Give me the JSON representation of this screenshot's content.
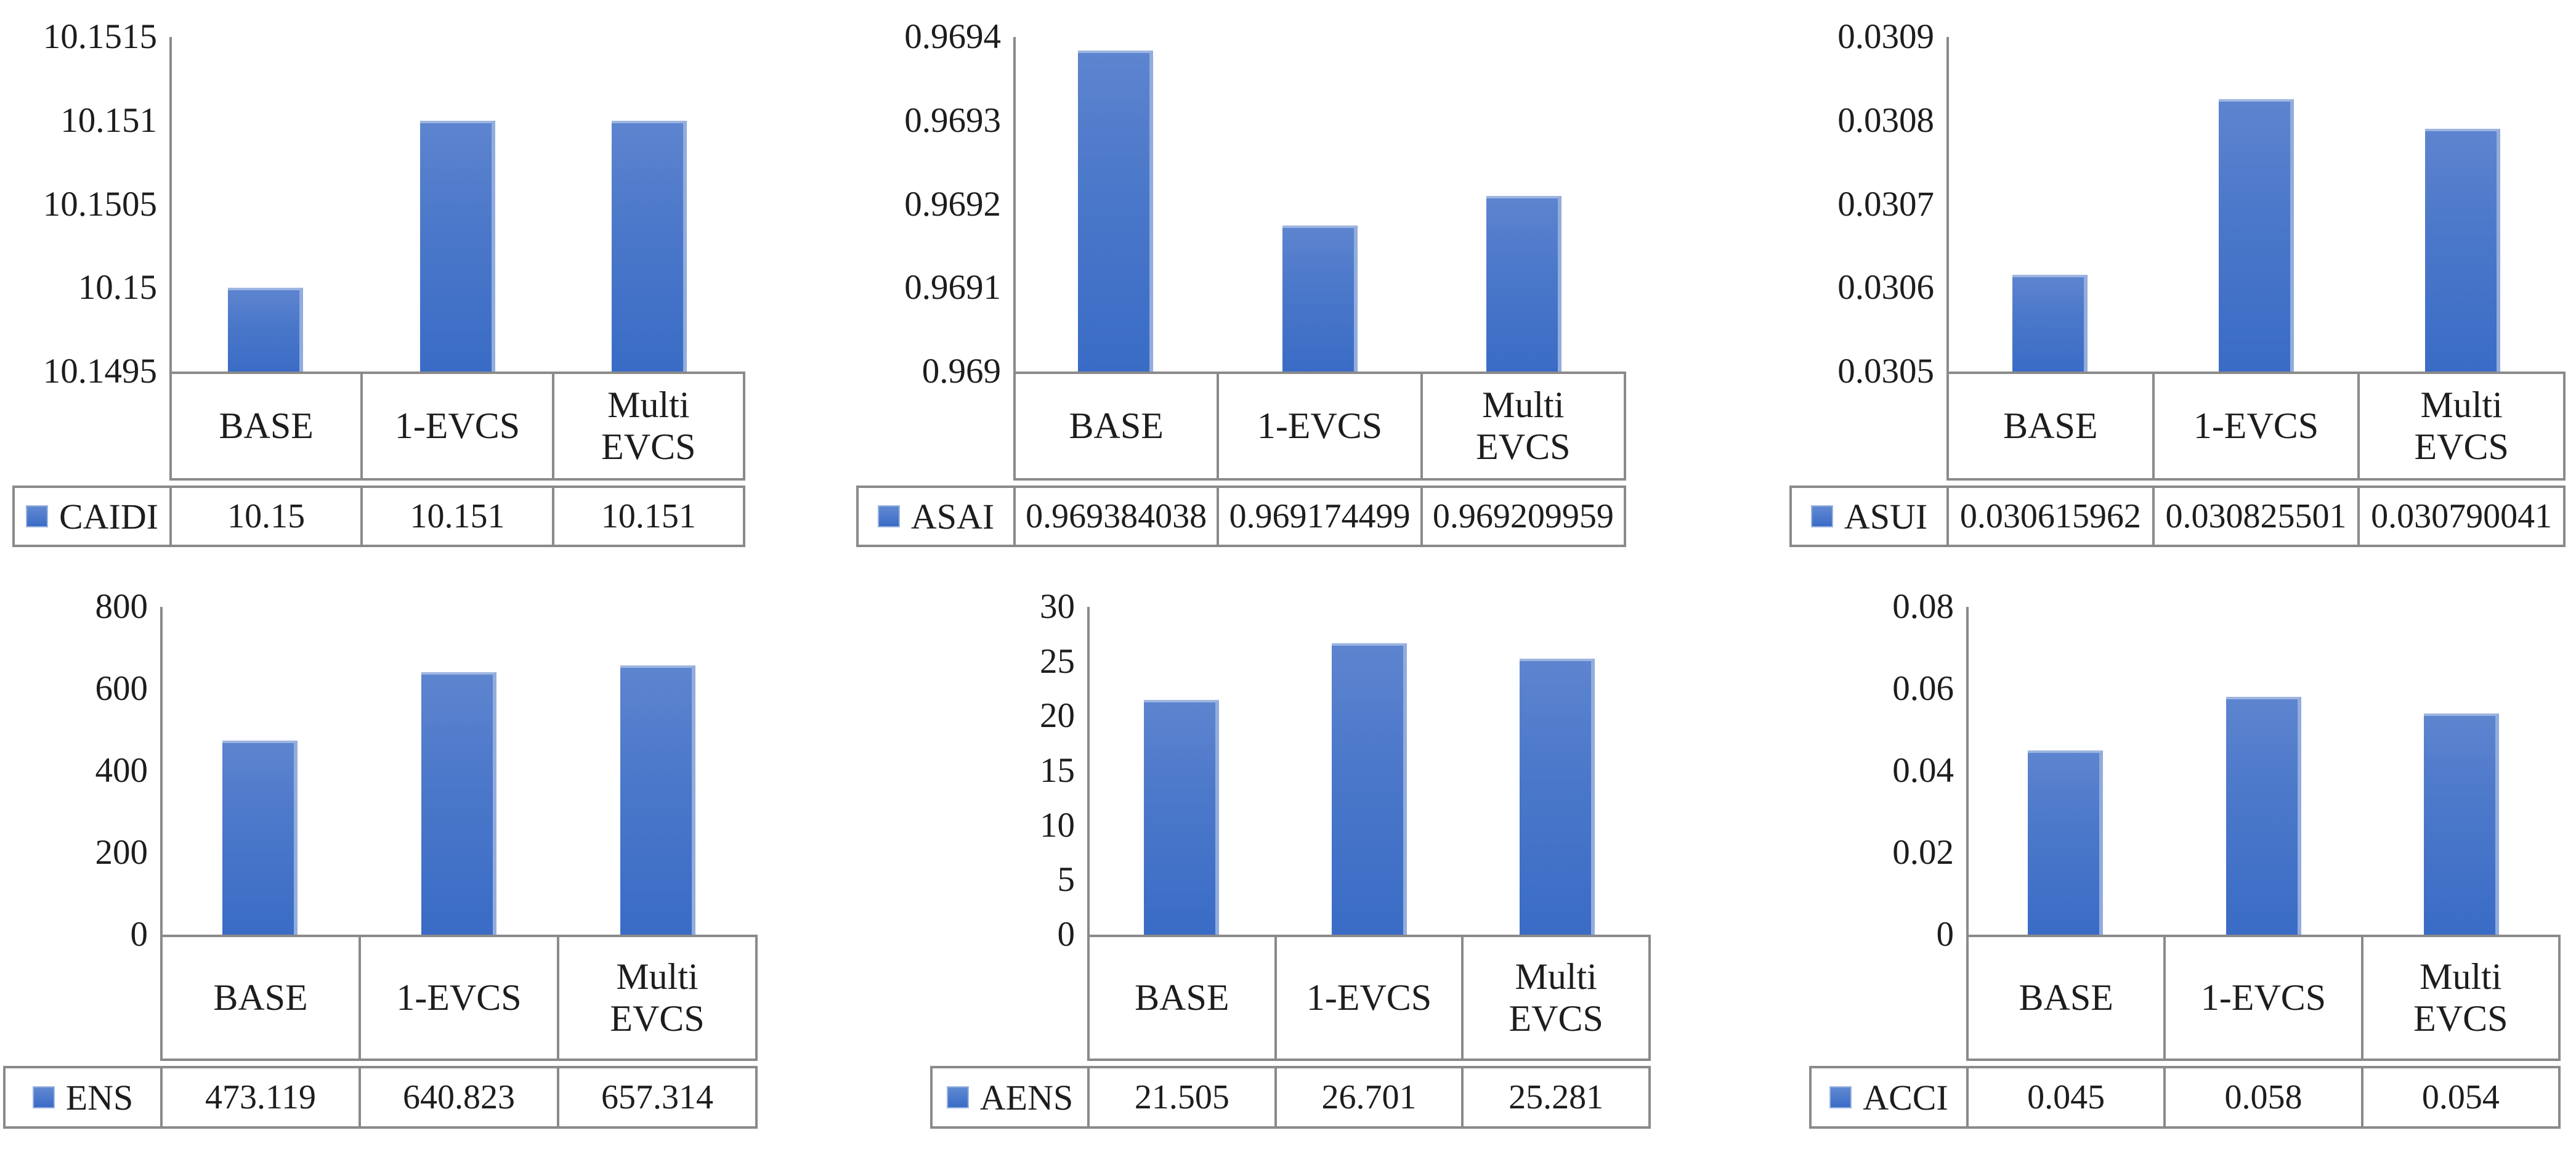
{
  "figure": {
    "background": "#ffffff",
    "text_color": "#1d1d1d",
    "border_color": "#8a8a8a",
    "bar_color_top": "#5d84cf",
    "bar_color_bottom": "#3a6cc6",
    "bar_base_color": "#4472c4"
  },
  "chart_data": [
    {
      "type": "bar",
      "name": "CAIDI",
      "categories": [
        "BASE",
        "1-EVCS",
        "Multi EVCS"
      ],
      "values": [
        10.15,
        10.151,
        10.151
      ],
      "display_values": [
        "10.15",
        "10.151",
        "10.151"
      ],
      "ylim": [
        10.1495,
        10.1515
      ],
      "yticks": [
        "10.1515",
        "10.151",
        "10.1505",
        "10.15",
        "10.1495"
      ],
      "grid": false,
      "legend_position": "table-left"
    },
    {
      "type": "bar",
      "name": "ASAI",
      "categories": [
        "BASE",
        "1-EVCS",
        "Multi EVCS"
      ],
      "values": [
        0.969384038,
        0.969174499,
        0.969209959
      ],
      "display_values": [
        "0.969384038",
        "0.969174499",
        "0.969209959"
      ],
      "ylim": [
        0.969,
        0.9694
      ],
      "yticks": [
        "0.9694",
        "0.9693",
        "0.9692",
        "0.9691",
        "0.969"
      ],
      "grid": false,
      "legend_position": "table-left"
    },
    {
      "type": "bar",
      "name": "ASUI",
      "categories": [
        "BASE",
        "1-EVCS",
        "Multi EVCS"
      ],
      "values": [
        0.030615962,
        0.030825501,
        0.030790041
      ],
      "display_values": [
        "0.030615962",
        "0.030825501",
        "0.030790041"
      ],
      "ylim": [
        0.0305,
        0.0309
      ],
      "yticks": [
        "0.0309",
        "0.0308",
        "0.0307",
        "0.0306",
        "0.0305"
      ],
      "grid": false,
      "legend_position": "table-left"
    },
    {
      "type": "bar",
      "name": "ENS",
      "categories": [
        "BASE",
        "1-EVCS",
        "Multi EVCS"
      ],
      "values": [
        473.119,
        640.823,
        657.314
      ],
      "display_values": [
        "473.119",
        "640.823",
        "657.314"
      ],
      "ylim": [
        0,
        800
      ],
      "yticks": [
        "800",
        "600",
        "400",
        "200",
        "0"
      ],
      "grid": false,
      "legend_position": "table-left"
    },
    {
      "type": "bar",
      "name": "AENS",
      "categories": [
        "BASE",
        "1-EVCS",
        "Multi EVCS"
      ],
      "values": [
        21.505,
        26.701,
        25.281
      ],
      "display_values": [
        "21.505",
        "26.701",
        "25.281"
      ],
      "ylim": [
        0,
        30
      ],
      "yticks": [
        "30",
        "25",
        "20",
        "15",
        "10",
        "5",
        "0"
      ],
      "grid": false,
      "legend_position": "table-left"
    },
    {
      "type": "bar",
      "name": "ACCI",
      "categories": [
        "BASE",
        "1-EVCS",
        "Multi EVCS"
      ],
      "values": [
        0.045,
        0.058,
        0.054
      ],
      "display_values": [
        "0.045",
        "0.058",
        "0.054"
      ],
      "ylim": [
        0,
        0.08
      ],
      "yticks": [
        "0.08",
        "0.06",
        "0.04",
        "0.02",
        "0"
      ],
      "grid": false,
      "legend_position": "table-left"
    }
  ]
}
